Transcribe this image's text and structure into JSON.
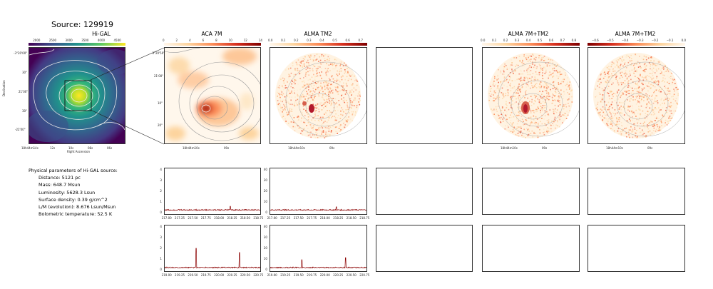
{
  "source": {
    "label": "Source: 129919"
  },
  "panels": {
    "higal": {
      "title": "Hi-GAL",
      "cbar_ticks": [
        "2000",
        "2500",
        "3000",
        "3500",
        "4000",
        "4500"
      ],
      "y_ticks": [
        "-3°20'00\"",
        "30\"",
        "21'00\"",
        "30\"",
        "-22'00\""
      ],
      "x_ticks": [
        "18h44m14s",
        "12s",
        "10s",
        "08s",
        "06s"
      ],
      "ylabel": "Declination",
      "xlabel": "Right Ascension"
    },
    "aca": {
      "title": "ACA 7M",
      "cbar_ticks": [
        "0",
        "2",
        "4",
        "6",
        "8",
        "10",
        "12",
        "14"
      ],
      "y_ticks": [
        "-3°20'50\"",
        "21'00\"",
        "10\"",
        "20\""
      ],
      "x_ticks": [
        "18h44m10s",
        "09s"
      ]
    },
    "tm2": {
      "title": "ALMA TM2",
      "cbar_ticks": [
        "0.0",
        "0.1",
        "0.2",
        "0.3",
        "0.4",
        "0.5",
        "0.6",
        "0.7"
      ],
      "x_ticks": [
        "18h44m10s",
        "09s"
      ]
    },
    "combo": {
      "title": "ALMA 7M+TM2",
      "cbar_ticks": [
        "0.0",
        "0.1",
        "0.2",
        "0.3",
        "0.4",
        "0.5",
        "0.6",
        "0.7",
        "0.8"
      ],
      "x_ticks": [
        "18h44m10s",
        "09s"
      ]
    },
    "combo2": {
      "title": "ALMA 7M+TM2",
      "cbar_ticks": [
        "−0.6",
        "−0.5",
        "−0.4",
        "−0.3",
        "−0.2",
        "−0.1",
        "0.0"
      ],
      "x_ticks": [
        "18h44m10s",
        "09s"
      ]
    }
  },
  "params": {
    "heading": "Physical parameters of Hi-GAL source:",
    "distance": "Distance: 5121 pc",
    "mass": "Mass: 648.7 Msun",
    "luminosity": "Luminosity: 5628.3 Lsun",
    "surface_density": "Surface density: 0.39 g/cm^2",
    "lm": "L/M (evolution): 8.676 Lsun/Msun",
    "tbol": "Bolometric temperature: 52.5 K"
  },
  "colors": {
    "line": "#8b0000",
    "viridis_peak": "#fde725",
    "cmap_hot": "#b2182b"
  },
  "chart_data": [
    {
      "type": "line",
      "name": "aca-spectrum-upper",
      "x_ticks": [
        "217.00",
        "217.25",
        "217.50",
        "217.75",
        "218.00",
        "218.25",
        "218.50",
        "218.75"
      ],
      "y_ticks": [
        "0",
        "1",
        "2",
        "3",
        "4"
      ],
      "xlim": [
        216.95,
        218.8
      ],
      "ylim": [
        -0.2,
        4.2
      ],
      "baseline": 0.2,
      "peaks": [
        [
          218.22,
          0.55
        ]
      ]
    },
    {
      "type": "line",
      "name": "tm2-spectrum-upper",
      "x_ticks": [
        "217.00",
        "217.25",
        "217.50",
        "217.75",
        "218.00",
        "218.25",
        "218.50",
        "218.75"
      ],
      "y_ticks": [
        "0",
        "10",
        "20",
        "30",
        "40"
      ],
      "xlim": [
        216.95,
        218.8
      ],
      "ylim": [
        -2,
        42
      ],
      "baseline": 2,
      "peaks": [
        [
          218.22,
          5
        ]
      ]
    },
    {
      "type": "line",
      "name": "aca-spectrum-lower",
      "x_ticks": [
        "219.00",
        "219.25",
        "219.50",
        "219.75",
        "220.00",
        "220.25",
        "220.50",
        "220.75"
      ],
      "y_ticks": [
        "0",
        "1",
        "2",
        "3",
        "4"
      ],
      "xlim": [
        218.95,
        220.8
      ],
      "ylim": [
        -0.2,
        4.2
      ],
      "baseline": 0.15,
      "peaks": [
        [
          219.56,
          2.0
        ],
        [
          220.4,
          1.6
        ]
      ]
    },
    {
      "type": "line",
      "name": "tm2-spectrum-lower",
      "x_ticks": [
        "219.00",
        "219.25",
        "219.50",
        "219.75",
        "220.00",
        "220.25",
        "220.50",
        "220.75"
      ],
      "y_ticks": [
        "0",
        "10",
        "20",
        "30",
        "40"
      ],
      "xlim": [
        218.95,
        220.8
      ],
      "ylim": [
        -2,
        42
      ],
      "baseline": 1.5,
      "peaks": [
        [
          219.56,
          9
        ],
        [
          220.4,
          11
        ]
      ]
    }
  ]
}
